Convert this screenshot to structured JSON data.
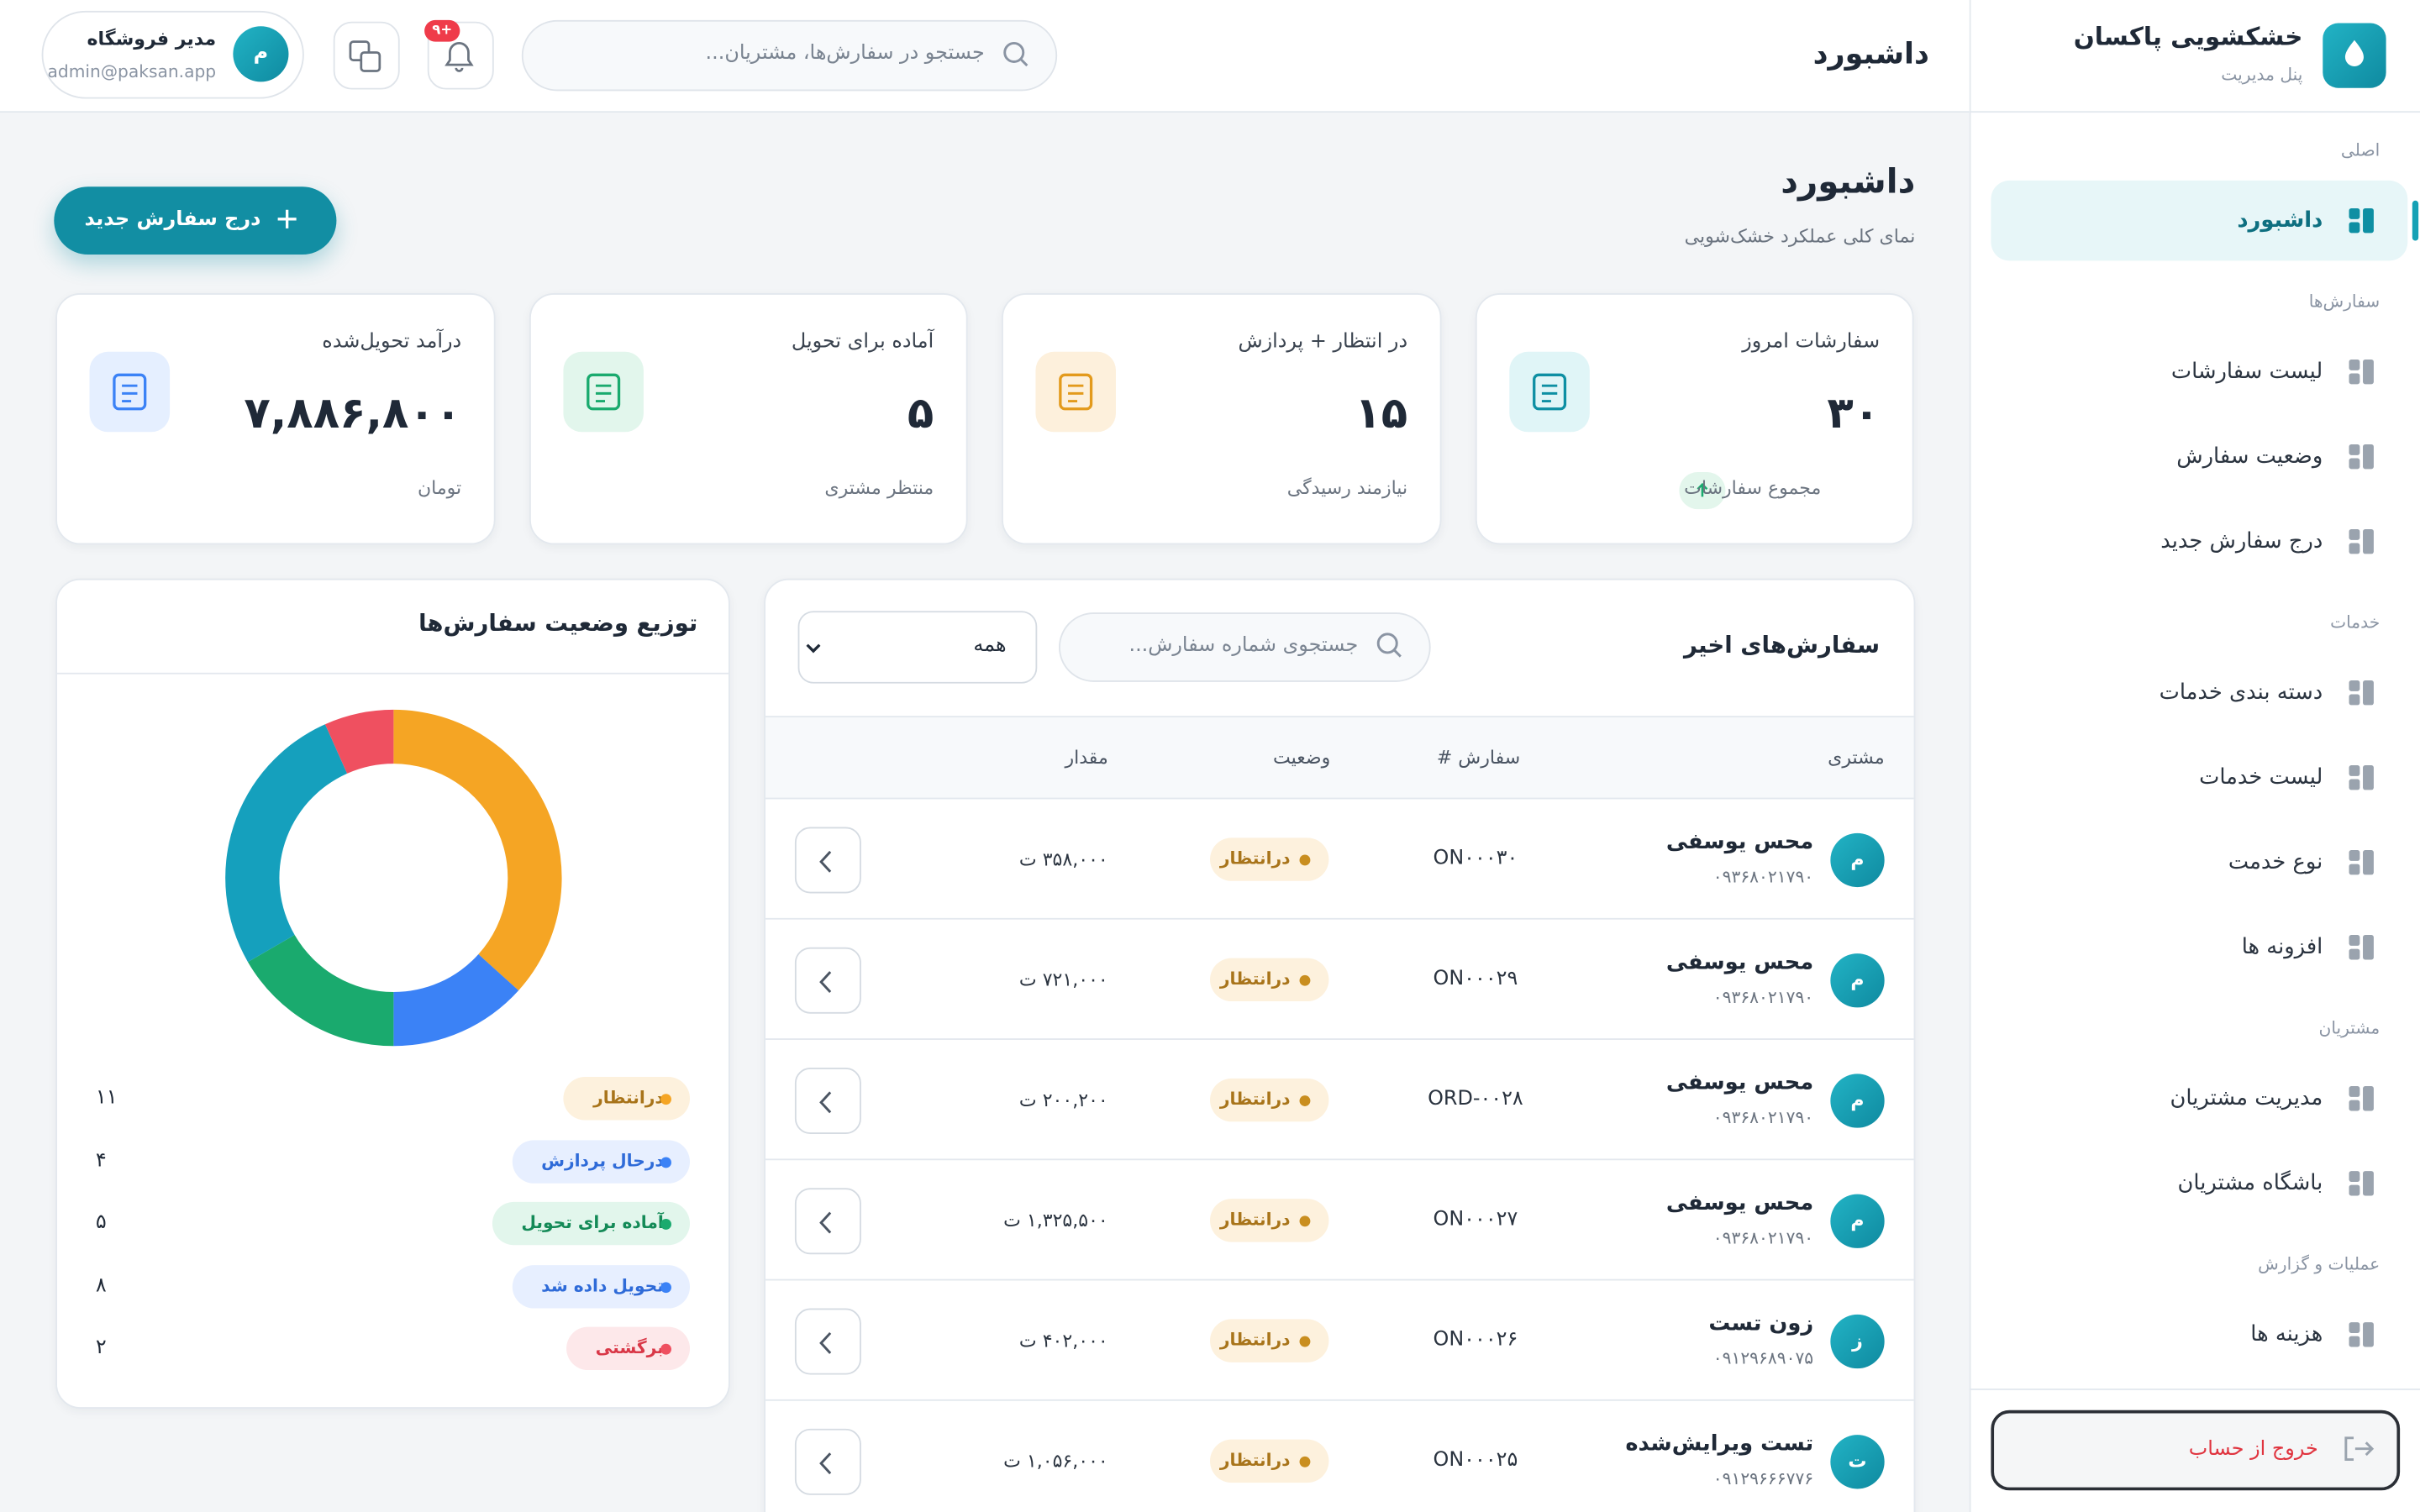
{
  "sidebar": {
    "brand": "خشکشویی پاکسان",
    "subtitle": "پنل مدیریت",
    "sections": [
      {
        "title": "اصلی",
        "items": [
          "داشبورد"
        ]
      },
      {
        "title": "سفارش‌ها",
        "items": [
          "لیست سفارشات",
          "وضعیت سفارش",
          "درج سفارش جدید"
        ]
      },
      {
        "title": "خدمات",
        "items": [
          "دسته بندی خدمات",
          "لیست خدمات",
          "نوع خدمت",
          "افزونه ها"
        ]
      },
      {
        "title": "مشتریان",
        "items": [
          "مدیریت مشتریان",
          "باشگاه مشتریان"
        ]
      },
      {
        "title": "عملیات و گزارش",
        "items": [
          "هزینه ها"
        ]
      }
    ],
    "logout": "خروج از حساب"
  },
  "topbar": {
    "title": "داشبورد",
    "search_placeholder": "جستجو در سفارش‌ها، مشتریان...",
    "notification_badge": "+۹",
    "user": {
      "name": "مدیر فروشگاه",
      "email": "admin@paksan.app",
      "avatar": "م"
    }
  },
  "page": {
    "title": "داشبورد",
    "subtitle": "نمای کلی عملکرد خشک‌شویی",
    "new_order_button": "درج سفارش جدید"
  },
  "stats": [
    {
      "title": "سفارشات امروز",
      "value": "۳۰",
      "note": "مجموع سفارشات"
    },
    {
      "title": "در انتظار + پردازش",
      "value": "۱۵",
      "note": "نیازمند رسیدگی"
    },
    {
      "title": "آماده برای تحویل",
      "value": "۵",
      "note": "منتظر مشتری"
    },
    {
      "title": "درآمد تحویل‌شده",
      "value": "۷,۸۸۶,۸۰۰",
      "note": "تومان"
    }
  ],
  "recent_orders": {
    "title": "سفارش‌های اخیر",
    "search_placeholder": "جستجوی شماره سفارش...",
    "filter": "همه",
    "columns": [
      "مشتری",
      "سفارش #",
      "وضعیت",
      "مقدار"
    ],
    "rows": [
      {
        "avatar": "م",
        "name": "محس یوسفی",
        "phone": "۰۹۳۶۸۰۲۱۷۹۰",
        "order": "ON۰۰۰۳۰",
        "status": "درانتظار",
        "amount": "۳۵۸,۰۰۰ ت"
      },
      {
        "avatar": "م",
        "name": "محس یوسفی",
        "phone": "۰۹۳۶۸۰۲۱۷۹۰",
        "order": "ON۰۰۰۲۹",
        "status": "درانتظار",
        "amount": "۷۲۱,۰۰۰ ت"
      },
      {
        "avatar": "م",
        "name": "محس یوسفی",
        "phone": "۰۹۳۶۸۰۲۱۷۹۰",
        "order": "ORD-۰۰۲۸",
        "status": "درانتظار",
        "amount": "۲۰۰,۲۰۰ ت"
      },
      {
        "avatar": "م",
        "name": "محس یوسفی",
        "phone": "۰۹۳۶۸۰۲۱۷۹۰",
        "order": "ON۰۰۰۲۷",
        "status": "درانتظار",
        "amount": "۱,۳۲۵,۵۰۰ ت"
      },
      {
        "avatar": "ز",
        "name": "زون تست",
        "phone": "۰۹۱۲۹۶۸۹۰۷۵",
        "order": "ON۰۰۰۲۶",
        "status": "درانتظار",
        "amount": "۴۰۲,۰۰۰ ت"
      },
      {
        "avatar": "ت",
        "name": "تست ویرایش‌شده",
        "phone": "۰۹۱۲۹۶۶۶۷۷۶",
        "order": "ON۰۰۰۲۵",
        "status": "درانتظار",
        "amount": "۱,۰۵۶,۰۰۰ ت"
      }
    ]
  },
  "chart_data": {
    "type": "donut",
    "title": "توزیع وضعیت سفارش‌ها",
    "categories": [
      "درانتظار",
      "درحال پردازش",
      "آماده برای تحویل",
      "تحویل داده شد",
      "برگشتی"
    ],
    "values": [
      11,
      4,
      5,
      8,
      2
    ],
    "value_labels": [
      "۱۱",
      "۴",
      "۵",
      "۸",
      "۲"
    ],
    "colors": [
      "#f5a524",
      "#3b82f6",
      "#1aaa6e",
      "#15a0bd",
      "#ef5060"
    ]
  }
}
